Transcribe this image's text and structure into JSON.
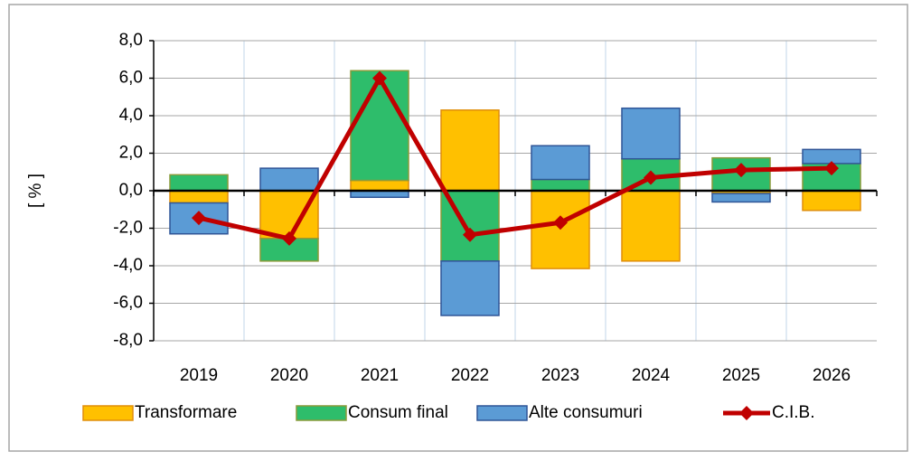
{
  "chart_data": {
    "type": "bar",
    "stacked": true,
    "y_label": "[ % ]",
    "categories": [
      "2019",
      "2020",
      "2021",
      "2022",
      "2023",
      "2024",
      "2025",
      "2026"
    ],
    "series": [
      {
        "name": "Transformare",
        "type": "bar",
        "color": "#FFC000",
        "edge": "#E08E0B",
        "values": [
          -0.65,
          -2.55,
          0.55,
          4.3,
          -4.15,
          -3.75,
          -0.15,
          -1.05
        ]
      },
      {
        "name": "Consum final",
        "type": "bar",
        "color": "#2EBD6B",
        "edge": "#8A9A3A",
        "values": [
          0.85,
          -1.2,
          5.85,
          -3.75,
          0.6,
          1.7,
          1.75,
          1.45
        ]
      },
      {
        "name": "Alte consumuri",
        "type": "bar",
        "color": "#5B9BD5",
        "edge": "#2F5597",
        "values": [
          -1.65,
          1.2,
          -0.35,
          -2.9,
          1.8,
          2.7,
          -0.45,
          0.75
        ]
      },
      {
        "name": "C.I.B.",
        "type": "line",
        "color": "#C00000",
        "values": [
          -1.45,
          -2.55,
          6.0,
          -2.35,
          -1.7,
          0.7,
          1.1,
          1.2
        ]
      }
    ],
    "ylim": [
      -8,
      8
    ],
    "yticks": [
      {
        "value": -8,
        "label": "-8,0"
      },
      {
        "value": -6,
        "label": "-6,0"
      },
      {
        "value": -4,
        "label": "-4,0"
      },
      {
        "value": -2,
        "label": "-2,0"
      },
      {
        "value": 0,
        "label": "0,0"
      },
      {
        "value": 2,
        "label": "2,0"
      },
      {
        "value": 4,
        "label": "4,0"
      },
      {
        "value": 6,
        "label": "6,0"
      },
      {
        "value": 8,
        "label": "8,0"
      }
    ],
    "grid": true,
    "legend": "bottom"
  }
}
